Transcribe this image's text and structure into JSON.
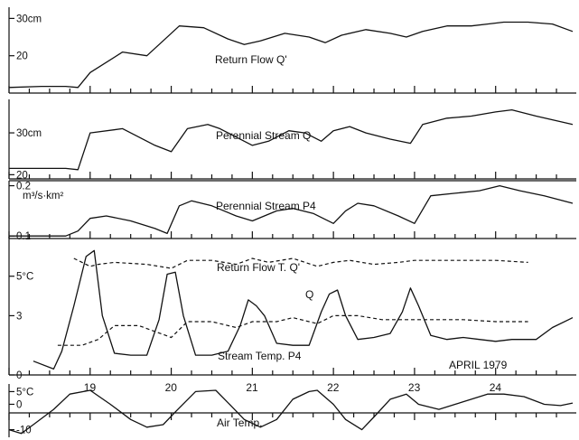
{
  "chart_data": [
    {
      "type": "line",
      "panel": "return_flow",
      "series": [
        {
          "name": "Return Flow Q'",
          "x": [
            18.0,
            18.4,
            18.7,
            18.85,
            19.0,
            19.4,
            19.7,
            19.9,
            20.1,
            20.4,
            20.7,
            20.9,
            21.1,
            21.4,
            21.7,
            21.9,
            22.1,
            22.4,
            22.7,
            22.9,
            23.1,
            23.4,
            23.7,
            23.9,
            24.1,
            24.4,
            24.7,
            24.95
          ],
          "y": [
            11.5,
            11.8,
            11.8,
            11.5,
            15.5,
            21,
            20,
            24,
            28,
            27.5,
            24.5,
            23,
            24,
            26,
            25,
            23.5,
            25.5,
            27,
            26,
            25,
            26.5,
            28,
            28,
            28.5,
            29,
            29,
            28.5,
            26.5
          ]
        }
      ],
      "ytick_labels": [
        "20",
        "30cm"
      ],
      "ytick_values": [
        20,
        30
      ],
      "ylim": [
        10,
        33
      ]
    },
    {
      "type": "line",
      "panel": "perennial_stream_q",
      "series": [
        {
          "name": "Perennial Stream Q",
          "x": [
            18.0,
            18.7,
            18.85,
            19.0,
            19.4,
            19.6,
            19.8,
            20.0,
            20.2,
            20.45,
            20.6,
            20.8,
            21.0,
            21.2,
            21.45,
            21.65,
            21.85,
            22.0,
            22.2,
            22.4,
            22.7,
            22.95,
            23.1,
            23.4,
            23.7,
            24.0,
            24.2,
            24.5,
            24.95
          ],
          "y": [
            21.5,
            21.5,
            21.2,
            30,
            31,
            29,
            27,
            25.5,
            31,
            32,
            31,
            29,
            27,
            28,
            30.5,
            30,
            28,
            30.5,
            31.5,
            30,
            28.5,
            27.5,
            32,
            33.5,
            34,
            35,
            35.5,
            34,
            32
          ]
        }
      ],
      "ytick_labels": [
        "20",
        "30cm"
      ],
      "ytick_values": [
        20,
        30
      ],
      "ylim": [
        19,
        38
      ]
    },
    {
      "type": "line",
      "panel": "perennial_stream_p4",
      "series": [
        {
          "name": "Perennial Stream P4",
          "x": [
            18.0,
            18.45,
            18.7,
            18.85,
            19.0,
            19.2,
            19.5,
            19.8,
            19.95,
            20.1,
            20.25,
            20.5,
            20.8,
            21.0,
            21.3,
            21.5,
            21.75,
            22.0,
            22.15,
            22.3,
            22.5,
            22.8,
            23.0,
            23.2,
            23.5,
            23.8,
            24.05,
            24.3,
            24.6,
            24.95
          ],
          "y": [
            0.1,
            0.1,
            0.1,
            0.11,
            0.135,
            0.14,
            0.13,
            0.115,
            0.105,
            0.16,
            0.17,
            0.16,
            0.14,
            0.13,
            0.15,
            0.155,
            0.145,
            0.125,
            0.15,
            0.165,
            0.16,
            0.14,
            0.125,
            0.18,
            0.185,
            0.19,
            0.2,
            0.19,
            0.18,
            0.165
          ]
        }
      ],
      "ytick_labels": [
        "0.1",
        "0.2"
      ],
      "ytick_values": [
        0.1,
        0.2
      ],
      "ylim": [
        0.095,
        0.21
      ]
    },
    {
      "type": "line",
      "panel": "water_temperature",
      "series": [
        {
          "name": "Return Flow T. Q'",
          "style": "dashed",
          "x": [
            18.8,
            19.0,
            19.1,
            19.3,
            19.7,
            20.0,
            20.2,
            20.5,
            20.8,
            21.0,
            21.2,
            21.5,
            21.8,
            22.0,
            22.2,
            22.5,
            22.8,
            23.0,
            23.3,
            23.7,
            24.0,
            24.4
          ],
          "y": [
            5.9,
            5.5,
            5.6,
            5.7,
            5.6,
            5.4,
            5.8,
            5.8,
            5.6,
            5.9,
            5.7,
            5.9,
            5.5,
            5.7,
            5.8,
            5.6,
            5.7,
            5.8,
            5.8,
            5.8,
            5.8,
            5.7
          ]
        },
        {
          "name": "Q",
          "style": "dashed",
          "x": [
            18.6,
            18.9,
            19.1,
            19.3,
            19.6,
            19.8,
            20.0,
            20.2,
            20.5,
            20.8,
            21.0,
            21.3,
            21.5,
            21.8,
            22.0,
            22.3,
            22.6,
            22.9,
            23.2,
            23.6,
            24.0,
            24.4
          ],
          "y": [
            1.5,
            1.5,
            1.8,
            2.5,
            2.5,
            2.2,
            1.9,
            2.7,
            2.7,
            2.4,
            2.7,
            2.7,
            2.9,
            2.6,
            3.0,
            3.0,
            2.8,
            2.8,
            2.8,
            2.8,
            2.7,
            2.7
          ]
        },
        {
          "name": "Stream Temp. P4",
          "style": "solid",
          "x": [
            18.3,
            18.55,
            18.65,
            18.8,
            18.95,
            19.05,
            19.15,
            19.3,
            19.5,
            19.7,
            19.85,
            19.95,
            20.05,
            20.15,
            20.3,
            20.5,
            20.7,
            20.85,
            20.95,
            21.05,
            21.15,
            21.3,
            21.5,
            21.7,
            21.85,
            21.95,
            22.05,
            22.15,
            22.3,
            22.5,
            22.7,
            22.85,
            22.95,
            23.05,
            23.2,
            23.4,
            23.6,
            23.8,
            24.0,
            24.2,
            24.5,
            24.7,
            24.9,
            24.95
          ],
          "y": [
            0.7,
            0.3,
            1.2,
            3.5,
            6,
            6.3,
            3,
            1.1,
            1,
            1,
            2.8,
            5.1,
            5.2,
            3,
            1,
            1,
            1.2,
            2.5,
            3.8,
            3.5,
            3,
            1.6,
            1.5,
            1.5,
            3.2,
            4.1,
            4.3,
            3,
            1.8,
            1.9,
            2.1,
            3.2,
            4.4,
            3.5,
            2,
            1.8,
            1.9,
            1.8,
            1.7,
            1.8,
            1.8,
            2.4,
            2.8,
            2.9
          ]
        }
      ],
      "ytick_labels": [
        "0",
        "3",
        "5°C"
      ],
      "ytick_values": [
        0,
        3,
        5
      ],
      "ylim": [
        0,
        7
      ]
    },
    {
      "type": "line",
      "panel": "air_temperature",
      "series": [
        {
          "name": "Air Temp.",
          "x": [
            18.0,
            18.15,
            18.3,
            18.55,
            18.75,
            19.0,
            19.25,
            19.5,
            19.7,
            19.9,
            20.05,
            20.3,
            20.55,
            20.75,
            20.9,
            21.1,
            21.3,
            21.5,
            21.7,
            21.8,
            22.0,
            22.15,
            22.35,
            22.5,
            22.7,
            22.9,
            23.05,
            23.3,
            23.5,
            23.7,
            23.9,
            24.1,
            24.35,
            24.6,
            24.8,
            24.95
          ],
          "y": [
            -10,
            -11.5,
            -8,
            -2,
            4,
            5.5,
            0,
            -6,
            -9,
            -8,
            -3,
            5,
            5.5,
            -1,
            -6,
            -9,
            -6,
            2,
            5,
            5.5,
            0,
            -6,
            -10,
            -5,
            2,
            4,
            0,
            -2,
            0,
            2,
            4,
            4,
            3,
            0,
            -0.5,
            0.5
          ]
        }
      ],
      "ytick_labels": [
        "-10",
        "0",
        "5°C"
      ],
      "ytick_values": [
        -10,
        0,
        5
      ],
      "ylim": [
        -13,
        8
      ]
    }
  ],
  "labels": {
    "return_flow": "Return Flow  Q'",
    "perennial_q": "Perennial Stream  Q",
    "perennial_p4": "Perennial Stream  P4",
    "return_flow_t": "Return Flow  T. Q'",
    "q": "Q",
    "stream_temp": "Stream  Temp. P4",
    "air_temp": "Air Temp.",
    "date_caption": "APRIL 1979",
    "unit_p4": "m³/s·km²"
  },
  "x_axis": {
    "day_labels": [
      "19",
      "20",
      "21",
      "22",
      "23",
      "24"
    ],
    "day_values": [
      19,
      20,
      21,
      22,
      23,
      24
    ],
    "xlim": [
      18.0,
      24.95
    ]
  }
}
